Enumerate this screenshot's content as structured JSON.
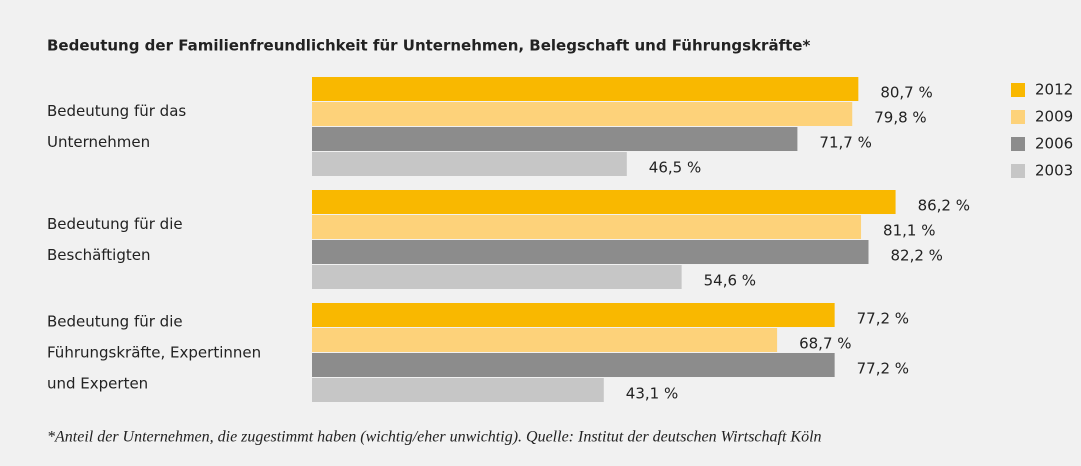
{
  "chart_data": {
    "type": "hbar",
    "title": "Bedeutung der Familienfreundlichkeit für Unternehmen, Belegschaft und Führungskräfte*",
    "footnote": "*Anteil der Unternehmen, die zugestimmt haben (wichtig/eher unwichtig). Quelle: Institut der deutschen Wirtschaft Köln",
    "categories": [
      [
        "Bedeutung für das",
        "Unternehmen"
      ],
      [
        "Bedeutung für die",
        "Beschäftigten"
      ],
      [
        "Bedeutung für die",
        "Führungskräfte, Expertinnen",
        "und Experten"
      ]
    ],
    "series": [
      {
        "name": "2012",
        "color": "#f9b800",
        "values": [
          80.7,
          86.2,
          77.2
        ],
        "value_labels": [
          "80,7 %",
          "86,2 %",
          "77,2 %"
        ]
      },
      {
        "name": "2009",
        "color": "#fdd27a",
        "values": [
          79.8,
          81.1,
          68.7
        ],
        "value_labels": [
          "79,8 %",
          "81,1 %",
          "68,7 %"
        ]
      },
      {
        "name": "2006",
        "color": "#8c8c8c",
        "values": [
          71.7,
          82.2,
          77.2
        ],
        "value_labels": [
          "71,7 %",
          "82,2 %",
          "77,2 %"
        ]
      },
      {
        "name": "2003",
        "color": "#c6c6c6",
        "values": [
          46.5,
          54.6,
          43.1
        ],
        "value_labels": [
          "46,5 %",
          "54,6 %",
          "43,1 %"
        ]
      }
    ],
    "xlim": [
      0,
      100
    ],
    "legend": "right"
  }
}
